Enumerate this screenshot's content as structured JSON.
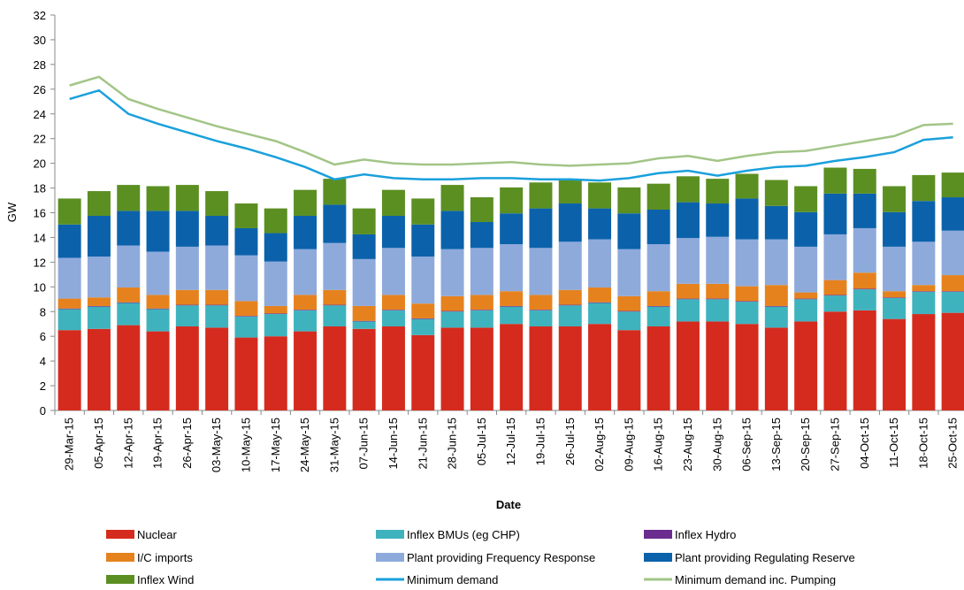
{
  "chart_data": {
    "type": "bar",
    "stacked": true,
    "x_label": "Date",
    "y_label": "GW",
    "categories": [
      "29-Mar-15",
      "05-Apr-15",
      "12-Apr-15",
      "19-Apr-15",
      "26-Apr-15",
      "03-May-15",
      "10-May-15",
      "17-May-15",
      "24-May-15",
      "31-May-15",
      "07-Jun-15",
      "14-Jun-15",
      "21-Jun-15",
      "28-Jun-15",
      "05-Jul-15",
      "12-Jul-15",
      "19-Jul-15",
      "26-Jul-15",
      "02-Aug-15",
      "09-Aug-15",
      "16-Aug-15",
      "23-Aug-15",
      "30-Aug-15",
      "06-Sep-15",
      "13-Sep-15",
      "20-Sep-15",
      "27-Sep-15",
      "04-Oct-15",
      "11-Oct-15",
      "18-Oct-15",
      "25-Oct-15"
    ],
    "ylim": [
      0,
      32
    ],
    "yticks": [
      0,
      2,
      4,
      6,
      8,
      10,
      12,
      14,
      16,
      18,
      20,
      22,
      24,
      26,
      28,
      30,
      32
    ],
    "series": [
      {
        "name": "Nuclear",
        "type": "bar",
        "color": "#d52b1e",
        "values": [
          6.5,
          6.6,
          6.9,
          6.4,
          6.8,
          6.7,
          5.9,
          6.0,
          6.4,
          6.8,
          6.6,
          6.8,
          6.1,
          6.7,
          6.7,
          7.0,
          6.8,
          6.8,
          7.0,
          6.5,
          6.8,
          7.2,
          7.2,
          7.0,
          6.7,
          7.2,
          8.0,
          8.1,
          7.4,
          7.8,
          7.9
        ]
      },
      {
        "name": "Inflex BMUs (eg CHP)",
        "type": "bar",
        "color": "#3fb3bd",
        "values": [
          1.7,
          1.8,
          1.8,
          1.8,
          1.7,
          1.8,
          1.7,
          1.8,
          1.7,
          1.7,
          0.6,
          1.3,
          1.3,
          1.3,
          1.4,
          1.4,
          1.3,
          1.7,
          1.7,
          1.5,
          1.6,
          1.8,
          1.8,
          1.8,
          1.7,
          1.8,
          1.3,
          1.7,
          1.7,
          1.8,
          1.7
        ]
      },
      {
        "name": "Inflex Hydro",
        "type": "bar",
        "color": "#6a2c8e",
        "values": [
          0.05,
          0.05,
          0.05,
          0.05,
          0.05,
          0.05,
          0.05,
          0.05,
          0.05,
          0.05,
          0.05,
          0.05,
          0.05,
          0.05,
          0.05,
          0.05,
          0.05,
          0.05,
          0.05,
          0.05,
          0.05,
          0.05,
          0.05,
          0.05,
          0.05,
          0.05,
          0.05,
          0.05,
          0.05,
          0.05,
          0.05
        ]
      },
      {
        "name": "I/C imports",
        "type": "bar",
        "color": "#e6821e",
        "values": [
          0.8,
          0.7,
          1.2,
          1.1,
          1.2,
          1.2,
          1.2,
          0.6,
          1.2,
          1.2,
          1.2,
          1.2,
          1.2,
          1.2,
          1.2,
          1.2,
          1.2,
          1.2,
          1.2,
          1.2,
          1.2,
          1.2,
          1.2,
          1.2,
          1.7,
          0.5,
          1.2,
          1.3,
          0.5,
          0.5,
          1.3
        ]
      },
      {
        "name": "Plant providing Frequency Response",
        "type": "bar",
        "color": "#8eaadb",
        "values": [
          3.3,
          3.3,
          3.4,
          3.5,
          3.5,
          3.6,
          3.7,
          3.6,
          3.7,
          3.8,
          3.8,
          3.8,
          3.8,
          3.8,
          3.8,
          3.8,
          3.8,
          3.9,
          3.9,
          3.8,
          3.8,
          3.7,
          3.8,
          3.8,
          3.7,
          3.7,
          3.7,
          3.6,
          3.6,
          3.5,
          3.6
        ]
      },
      {
        "name": "Plant providing Regulating Reserve",
        "type": "bar",
        "color": "#0b62ab",
        "values": [
          2.7,
          3.3,
          2.8,
          3.3,
          2.9,
          2.4,
          2.2,
          2.3,
          2.7,
          3.1,
          2.0,
          2.6,
          2.6,
          3.1,
          2.1,
          2.5,
          3.2,
          3.1,
          2.5,
          2.9,
          2.8,
          2.9,
          2.7,
          3.3,
          2.7,
          2.8,
          3.3,
          2.8,
          2.8,
          3.3,
          2.7
        ]
      },
      {
        "name": "Inflex Wind",
        "type": "bar",
        "color": "#5b8f22",
        "values": [
          2.1,
          2.0,
          2.1,
          2.0,
          2.1,
          2.0,
          2.0,
          2.0,
          2.1,
          2.1,
          2.1,
          2.1,
          2.1,
          2.1,
          2.0,
          2.1,
          2.1,
          2.0,
          2.1,
          2.1,
          2.1,
          2.1,
          2.0,
          2.0,
          2.1,
          2.1,
          2.1,
          2.0,
          2.1,
          2.1,
          2.0
        ]
      },
      {
        "name": "Minimum demand",
        "type": "line",
        "color": "#1aa0dc",
        "values": [
          25.2,
          25.9,
          24.0,
          23.2,
          22.5,
          21.8,
          21.2,
          20.5,
          19.7,
          18.7,
          19.1,
          18.8,
          18.7,
          18.7,
          18.8,
          18.8,
          18.7,
          18.7,
          18.6,
          18.8,
          19.2,
          19.4,
          19.0,
          19.4,
          19.7,
          19.8,
          20.2,
          20.5,
          20.9,
          21.9,
          22.1
        ]
      },
      {
        "name": "Minimum demand inc. Pumping",
        "type": "line",
        "color": "#a2c587",
        "values": [
          26.3,
          27.0,
          25.2,
          24.4,
          23.7,
          23.0,
          22.4,
          21.8,
          20.9,
          19.9,
          20.3,
          20.0,
          19.9,
          19.9,
          20.0,
          20.1,
          19.9,
          19.8,
          19.9,
          20.0,
          20.4,
          20.6,
          20.2,
          20.6,
          20.9,
          21.0,
          21.4,
          21.8,
          22.2,
          23.1,
          23.2
        ]
      }
    ]
  }
}
